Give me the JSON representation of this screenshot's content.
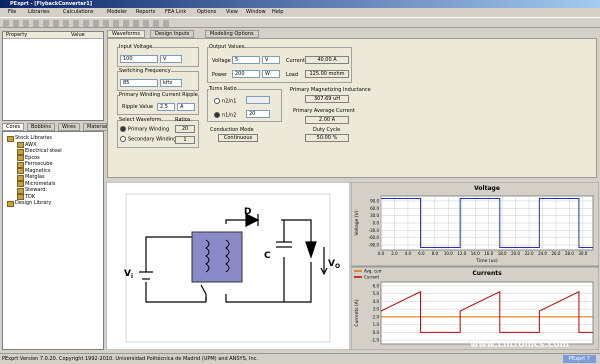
{
  "window": {
    "title": "PExprt - [FlybackConverter1]",
    "badge": "PExprt 7"
  },
  "menu": [
    "File",
    "Libraries",
    "Calculations",
    "Modeler",
    "Reports",
    "FEA Link",
    "Options",
    "View",
    "Window",
    "Help"
  ],
  "properties": {
    "headers": [
      "Property",
      "Value"
    ]
  },
  "library_tabs": [
    "Cores",
    "Bobbins",
    "Wires",
    "Material"
  ],
  "tree": [
    "Stock Libraries",
    "AWX",
    "Electrical steel",
    "Epcos",
    "Ferroxcube",
    "Magnetics",
    "Metglas",
    "Micrometals",
    "Steward",
    "TDK",
    "Design Library"
  ],
  "tabs": [
    "Waveforms",
    "Design Inputs",
    "Modeling Options"
  ],
  "inputs": {
    "input_voltage": {
      "label": "Input Voltage",
      "value": "100",
      "unit": "V"
    },
    "switching_frequency": {
      "label": "Switching Frequency",
      "value": "85",
      "unit": "kHz"
    },
    "ripple": {
      "label": "Primary Winding Current Ripple",
      "field": "Ripple Value",
      "value": "2.5",
      "unit": "A"
    },
    "waveform": {
      "label": "Select Waveform",
      "options": [
        "Primary Winding",
        "Secondary Winding"
      ],
      "ratios_label": "Ratios",
      "ratios": [
        "20",
        "1"
      ]
    },
    "output": {
      "label": "Output Values",
      "voltage_label": "Voltage",
      "voltage": "5",
      "voltage_unit": "V",
      "power_label": "Power",
      "power": "200",
      "power_unit": "W",
      "current_label": "Current",
      "current": "40.00 A",
      "load_label": "Load",
      "load": "125.00 mohm"
    },
    "turns": {
      "label": "Turns Ratio",
      "options": [
        "n2/n1",
        "n1/n2"
      ],
      "n1n2": "20"
    },
    "inductance": {
      "label": "Primary Magnetizing Inductance",
      "value": "307.69 uH"
    },
    "avg_current": {
      "label": "Primary Average Current",
      "value": "2.00 A"
    },
    "conduction": {
      "label": "Conduction Mode",
      "value": "Continuous"
    },
    "duty": {
      "label": "Duty Cycle",
      "value": "50.00 %"
    }
  },
  "circuit": {
    "diode": "D",
    "capacitor": "C",
    "input": {
      "symbol": "V",
      "subscript": "i"
    },
    "output": {
      "symbol": "V",
      "subscript": "O"
    }
  },
  "chart_data": [
    {
      "type": "line",
      "title": "Voltage",
      "x_label": "Time (us)",
      "y_label": "Voltage (V)",
      "x": [
        0,
        5.88,
        5.88,
        11.76,
        11.76,
        17.65,
        17.65,
        23.53,
        23.53,
        29.41,
        29.41,
        31.5
      ],
      "series": [
        {
          "color": "#2030c0",
          "values": [
            100,
            100,
            -100,
            -100,
            100,
            100,
            -100,
            -100,
            100,
            100,
            -100,
            -100
          ]
        }
      ],
      "xlim": [
        0,
        31.5
      ],
      "ylim": [
        -110,
        110
      ],
      "xticks": [
        {
          "value": 0,
          "label": "0.0"
        },
        {
          "value": 2,
          "label": "2.0"
        },
        {
          "value": 4,
          "label": "4.0"
        },
        {
          "value": 6,
          "label": "6.0"
        },
        {
          "value": 8,
          "label": "8.0"
        },
        {
          "value": 10,
          "label": "10.0"
        },
        {
          "value": 12,
          "label": "12.0"
        },
        {
          "value": 14,
          "label": "14.0"
        },
        {
          "value": 16,
          "label": "16.0"
        },
        {
          "value": 18,
          "label": "18.0"
        },
        {
          "value": 20,
          "label": "20.0"
        },
        {
          "value": 22,
          "label": "22.0"
        },
        {
          "value": 24,
          "label": "24.0"
        },
        {
          "value": 26,
          "label": "26.0"
        },
        {
          "value": 28,
          "label": "28.0"
        },
        {
          "value": 30,
          "label": "30.0"
        }
      ],
      "yticks": [
        {
          "value": 90,
          "label": "90.0"
        },
        {
          "value": 60,
          "label": "60.0"
        },
        {
          "value": 30,
          "label": "30.0"
        },
        {
          "value": 0,
          "label": "0.0"
        },
        {
          "value": -30,
          "label": "-30.0"
        },
        {
          "value": -60,
          "label": "-60.0"
        },
        {
          "value": -90,
          "label": "-90.0"
        }
      ],
      "grid": true
    },
    {
      "type": "line",
      "title": "Currents",
      "y_label": "Currents (A)",
      "x": [
        0,
        5.88,
        5.88,
        11.76,
        11.76,
        17.65,
        17.65,
        23.53,
        23.53,
        29.41,
        29.41,
        31.5
      ],
      "series": [
        {
          "name": "Avg. curr",
          "color": "#e07000",
          "values": [
            2,
            2,
            2,
            2,
            2,
            2,
            2,
            2,
            2,
            2,
            2,
            2
          ]
        },
        {
          "name": "Current",
          "color": "#c00000",
          "values": [
            2.75,
            5.25,
            0,
            0,
            2.75,
            5.25,
            0,
            0,
            2.75,
            5.25,
            0,
            0
          ]
        }
      ],
      "xlim": [
        0,
        31.5
      ],
      "ylim": [
        -1.5,
        6.5
      ],
      "yticks": [
        {
          "value": 6,
          "label": "6.0"
        },
        {
          "value": 5,
          "label": "5.0"
        },
        {
          "value": 4,
          "label": "4.0"
        },
        {
          "value": 3,
          "label": "3.0"
        },
        {
          "value": 2,
          "label": "2.0"
        },
        {
          "value": 1,
          "label": "1.0"
        },
        {
          "value": 0,
          "label": "0.0"
        },
        {
          "value": -1,
          "label": "-1.0"
        }
      ],
      "grid": true,
      "legend": "upper-left"
    }
  ],
  "status": "PExprt Version 7.0.20. Copyright 1992-2010. Universidad Politécnica de Madrid (UPM) and ANSYS, Inc.",
  "watermark": "www.cntronics.com"
}
